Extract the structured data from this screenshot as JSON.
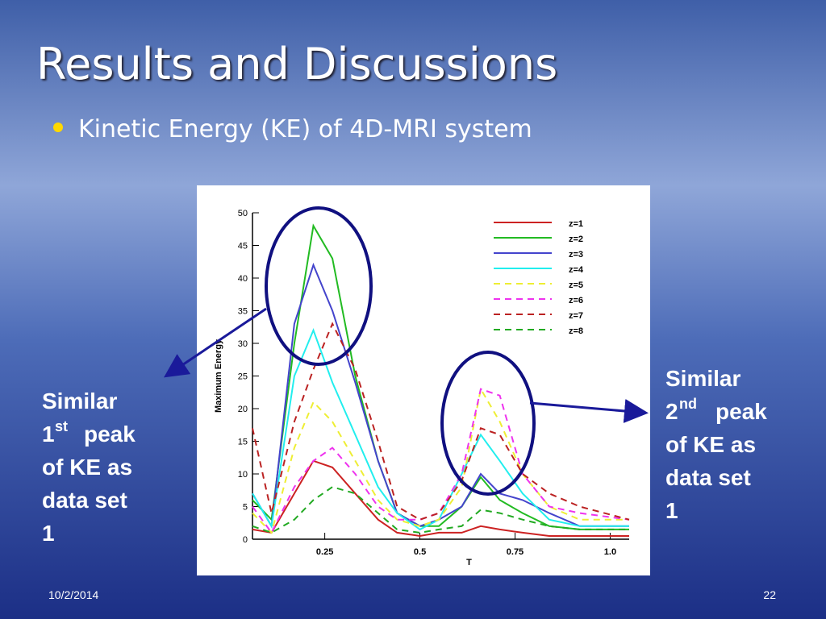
{
  "slide": {
    "title": "Results and Discussions",
    "bullet": "Kinetic Energy (KE) of 4D-MRI system",
    "left_annotation": {
      "line1": "Similar",
      "num": "1",
      "sup": "st",
      "rest": "peak",
      "line3": "of KE as",
      "line4": "data set",
      "line5": "1"
    },
    "right_annotation": {
      "line1": "Similar",
      "num": "2",
      "sup": "nd",
      "rest": "peak",
      "line3": "of KE as",
      "line4": "data set",
      "line5": "1"
    },
    "date": "10/2/2014",
    "page": "22"
  },
  "chart_data": {
    "type": "line",
    "xlabel": "T",
    "ylabel": "Maximum Energy",
    "x": [
      0.06,
      0.11,
      0.17,
      0.22,
      0.27,
      0.33,
      0.39,
      0.44,
      0.5,
      0.55,
      0.61,
      0.66,
      0.71,
      0.77,
      0.84,
      0.92,
      1.05
    ],
    "series": [
      {
        "name": "z=1",
        "color": "#cc2222",
        "dashed": false,
        "values": [
          1.5,
          1,
          7,
          12,
          11,
          7,
          3,
          1,
          0.5,
          1,
          1,
          2,
          1.5,
          1,
          0.5,
          0.5,
          0.5
        ]
      },
      {
        "name": "z=2",
        "color": "#22bb22",
        "dashed": false,
        "values": [
          6,
          3,
          30,
          48,
          43,
          25,
          12,
          4,
          2,
          2,
          5,
          9.5,
          6,
          4,
          2,
          1.5,
          1.5
        ]
      },
      {
        "name": "z=3",
        "color": "#4444cc",
        "dashed": false,
        "values": [
          7,
          2,
          33,
          42,
          35,
          24,
          12,
          4,
          2,
          3,
          5,
          10,
          7,
          6,
          4,
          2,
          2
        ]
      },
      {
        "name": "z=4",
        "color": "#22eeee",
        "dashed": false,
        "values": [
          7,
          2,
          25,
          32,
          24,
          16,
          8,
          4,
          1.5,
          3,
          10,
          16,
          12,
          7,
          3,
          2,
          2
        ]
      },
      {
        "name": "z=5",
        "color": "#eeee33",
        "dashed": true,
        "values": [
          4,
          1,
          14,
          21,
          18,
          12,
          6,
          3,
          2,
          3,
          8,
          23,
          18,
          10,
          5,
          3,
          3
        ]
      },
      {
        "name": "z=6",
        "color": "#ee33ee",
        "dashed": true,
        "values": [
          5,
          1,
          8,
          12,
          14,
          10,
          5,
          3,
          3,
          4,
          10,
          23,
          22,
          10,
          5,
          4,
          3
        ]
      },
      {
        "name": "z=7",
        "color": "#bb2222",
        "dashed": true,
        "values": [
          17,
          4,
          18,
          26,
          33,
          26,
          15,
          5,
          3,
          4,
          9,
          17,
          16,
          10,
          7,
          5,
          3
        ]
      },
      {
        "name": "z=8",
        "color": "#22aa22",
        "dashed": true,
        "values": [
          2,
          1,
          3,
          6,
          8,
          7,
          4,
          1.5,
          1,
          1.5,
          2,
          4.5,
          4,
          3,
          2,
          1.5,
          1.5
        ]
      }
    ],
    "xlim": [
      0.06,
      1.05
    ],
    "ylim": [
      0,
      50
    ],
    "xticks": [
      0.25,
      0.5,
      0.75,
      {
        "value": 1,
        "label": "1.0"
      }
    ],
    "yticks": [
      0,
      5,
      10,
      15,
      20,
      25,
      30,
      35,
      40,
      45,
      50
    ],
    "legend": "upper right"
  }
}
